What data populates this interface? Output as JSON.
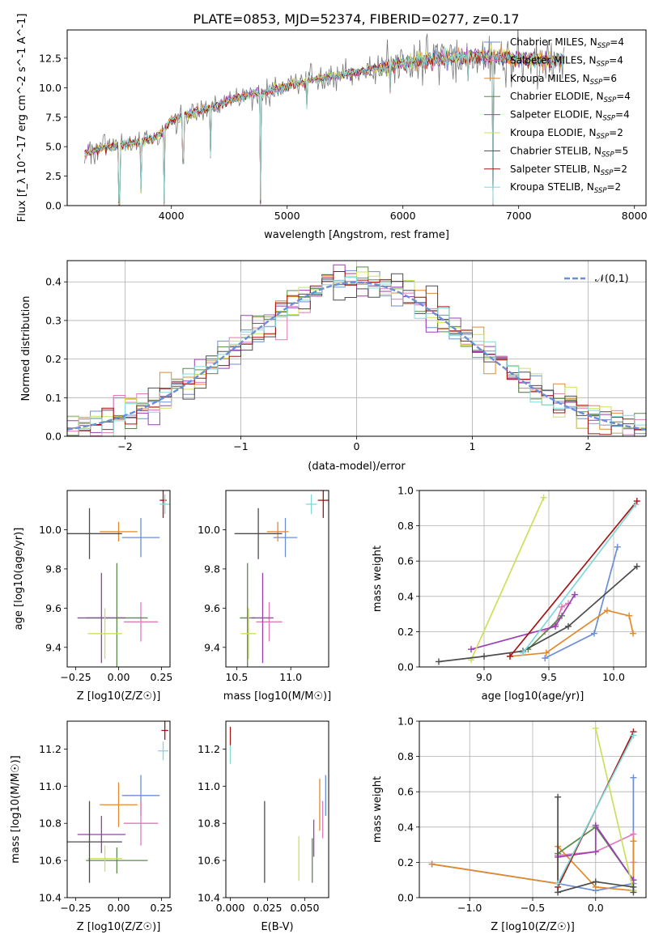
{
  "figure_title": "PLATE=0853, MJD=52374, FIBERID=0277, z=0.17",
  "colors": {
    "Chabrier MILES": "#6a8fd6",
    "Salpeter MILES": "#e07ab8",
    "Kroupa MILES": "#e08a2e",
    "Chabrier ELODIE": "#5a8a4a",
    "Salpeter ELODIE": "#9b3fb5",
    "Kroupa ELODIE": "#cde05a",
    "Chabrier STELIB": "#4d4d4d",
    "Salpeter STELIB": "#a31515",
    "Kroupa STELIB": "#7fd9d9"
  },
  "chart_data": [
    {
      "id": "spectrum",
      "type": "line",
      "title": "PLATE=0853, MJD=52374, FIBERID=0277, z=0.17",
      "xlabel": "wavelength [Angstrom, rest frame]",
      "ylabel": "Flux [f_λ 10^-17 erg cm^-2 s^-1 A^-1]",
      "xlim": [
        3100,
        8100
      ],
      "ylim": [
        0,
        14.9
      ],
      "xticks": [
        "4000",
        "5000",
        "6000",
        "7000",
        "8000"
      ],
      "yticks": [
        "0.0",
        "2.5",
        "5.0",
        "7.5",
        "10.0",
        "12.5"
      ],
      "grid": false,
      "legend_position": "top-right",
      "legend": [
        "Chabrier MILES, N_SSP=4",
        "Salpeter MILES, N_SSP=4",
        "Kroupa MILES, N_SSP=6",
        "Chabrier ELODIE, N_SSP=4",
        "Salpeter ELODIE, N_SSP=4",
        "Kroupa ELODIE, N_SSP=2",
        "Chabrier STELIB, N_SSP=5",
        "Salpeter STELIB, N_SSP=2",
        "Kroupa STELIB, N_SSP=2"
      ],
      "continuum": [
        [
          3250,
          4.4
        ],
        [
          3400,
          4.9
        ],
        [
          3550,
          5.0
        ],
        [
          3700,
          5.4
        ],
        [
          3800,
          5.6
        ],
        [
          3900,
          6.0
        ],
        [
          4000,
          7.2
        ],
        [
          4100,
          7.6
        ],
        [
          4200,
          7.9
        ],
        [
          4300,
          8.2
        ],
        [
          4400,
          8.5
        ],
        [
          4500,
          9.0
        ],
        [
          4600,
          9.2
        ],
        [
          4700,
          9.5
        ],
        [
          4800,
          9.6
        ],
        [
          4900,
          9.9
        ],
        [
          5000,
          10.1
        ],
        [
          5200,
          10.6
        ],
        [
          5400,
          11.0
        ],
        [
          5600,
          11.3
        ],
        [
          5800,
          11.7
        ],
        [
          6000,
          12.1
        ],
        [
          6200,
          12.3
        ],
        [
          6400,
          12.6
        ],
        [
          6600,
          12.7
        ],
        [
          6800,
          12.6
        ],
        [
          7000,
          12.5
        ],
        [
          7200,
          12.3
        ],
        [
          7400,
          12.3
        ]
      ],
      "dips": [
        [
          3550,
          0.0
        ],
        [
          3740,
          1.0
        ],
        [
          3935,
          0.0
        ],
        [
          4102,
          3.5
        ],
        [
          4340,
          4.0
        ],
        [
          4770,
          0.0
        ],
        [
          5170,
          8.0
        ],
        [
          5890,
          9.5
        ],
        [
          6563,
          10.5
        ],
        [
          6780,
          0.0
        ],
        [
          7420,
          0.0
        ]
      ]
    },
    {
      "id": "residuals",
      "type": "histogram",
      "xlabel": "(data-model)/error",
      "ylabel": "Normed distribution",
      "xlim": [
        -2.5,
        2.5
      ],
      "ylim": [
        0,
        0.455
      ],
      "xticks": [
        "−2",
        "−1",
        "0",
        "1",
        "2"
      ],
      "yticks": [
        "0.0",
        "0.1",
        "0.2",
        "0.3",
        "0.4"
      ],
      "grid": true,
      "legend_position": "top-right",
      "legend": [
        "𝒩(0,1)"
      ],
      "bin_width": 0.1
    },
    {
      "id": "age_vs_Z",
      "type": "scatter",
      "xlabel": "Z [log10(Z/Z☉)]",
      "ylabel": "age [log10(age/yr)]",
      "xlim": [
        -0.3,
        0.3
      ],
      "ylim": [
        9.3,
        10.2
      ],
      "xticks": [
        "−0.25",
        "0.00",
        "0.25"
      ],
      "yticks": [
        "9.4",
        "9.6",
        "9.8",
        "10.0"
      ],
      "points": [
        {
          "model": "Chabrier MILES",
          "x": 0.13,
          "y": 9.96,
          "xerr": 0.11,
          "yerr": 0.1
        },
        {
          "model": "Salpeter MILES",
          "x": 0.13,
          "y": 9.53,
          "xerr": 0.1,
          "yerr": 0.1
        },
        {
          "model": "Kroupa MILES",
          "x": 0.0,
          "y": 9.99,
          "xerr": 0.11,
          "yerr": 0.05
        },
        {
          "model": "Chabrier ELODIE",
          "x": -0.01,
          "y": 9.55,
          "xerr": 0.18,
          "yerr": 0.28
        },
        {
          "model": "Salpeter ELODIE",
          "x": -0.1,
          "y": 9.55,
          "xerr": 0.14,
          "yerr": 0.23
        },
        {
          "model": "Kroupa ELODIE",
          "x": -0.08,
          "y": 9.47,
          "xerr": 0.1,
          "yerr": 0.13
        },
        {
          "model": "Chabrier STELIB",
          "x": -0.17,
          "y": 9.98,
          "xerr": 0.19,
          "yerr": 0.13
        },
        {
          "model": "Salpeter STELIB",
          "x": 0.26,
          "y": 10.15,
          "xerr": 0.02,
          "yerr": 0.09
        },
        {
          "model": "Kroupa STELIB",
          "x": 0.27,
          "y": 10.13,
          "xerr": 0.03,
          "yerr": 0.05
        }
      ]
    },
    {
      "id": "age_vs_mass",
      "type": "scatter",
      "xlabel": "mass [log10(M/M☉)]",
      "ylabel": "",
      "xlim": [
        10.4,
        11.35
      ],
      "ylim": [
        9.3,
        10.2
      ],
      "xticks": [
        "10.5",
        "11.0"
      ],
      "yticks": [
        "9.4",
        "9.6",
        "9.8",
        "10.0"
      ],
      "points": [
        {
          "model": "Chabrier MILES",
          "x": 10.95,
          "y": 9.96,
          "xerr": 0.11,
          "yerr": 0.1
        },
        {
          "model": "Salpeter MILES",
          "x": 10.8,
          "y": 9.53,
          "xerr": 0.12,
          "yerr": 0.1
        },
        {
          "model": "Kroupa MILES",
          "x": 10.88,
          "y": 9.99,
          "xerr": 0.1,
          "yerr": 0.05
        },
        {
          "model": "Chabrier ELODIE",
          "x": 10.6,
          "y": 9.55,
          "xerr": 0.07,
          "yerr": 0.28
        },
        {
          "model": "Salpeter ELODIE",
          "x": 10.74,
          "y": 9.55,
          "xerr": 0.1,
          "yerr": 0.23
        },
        {
          "model": "Kroupa ELODIE",
          "x": 10.61,
          "y": 9.47,
          "xerr": 0.07,
          "yerr": 0.13
        },
        {
          "model": "Chabrier STELIB",
          "x": 10.7,
          "y": 9.98,
          "xerr": 0.22,
          "yerr": 0.13
        },
        {
          "model": "Salpeter STELIB",
          "x": 11.3,
          "y": 10.15,
          "xerr": 0.05,
          "yerr": 0.09
        },
        {
          "model": "Kroupa STELIB",
          "x": 11.19,
          "y": 10.13,
          "xerr": 0.05,
          "yerr": 0.05
        }
      ]
    },
    {
      "id": "weight_vs_age",
      "type": "line",
      "xlabel": "age [log10(age/yr)]",
      "ylabel": "mass weight",
      "xlim": [
        8.5,
        10.25
      ],
      "ylim": [
        0,
        1.0
      ],
      "xticks": [
        "9.0",
        "9.5",
        "10.0"
      ],
      "yticks": [
        "0.0",
        "0.2",
        "0.4",
        "0.6",
        "0.8",
        "1.0"
      ],
      "grid": true,
      "series": [
        {
          "model": "Chabrier MILES",
          "x": [
            9.47,
            9.85,
            10.03
          ],
          "y": [
            0.05,
            0.19,
            0.68
          ]
        },
        {
          "model": "Salpeter MILES",
          "x": [
            9.47,
            9.55,
            9.6,
            9.65
          ],
          "y": [
            0.2,
            0.24,
            0.34,
            0.36
          ]
        },
        {
          "model": "Kroupa MILES",
          "x": [
            9.2,
            9.48,
            9.95,
            10.12,
            10.15
          ],
          "y": [
            0.06,
            0.08,
            0.32,
            0.29,
            0.19
          ]
        },
        {
          "model": "Chabrier ELODIE",
          "x": [
            9.34,
            9.6
          ],
          "y": [
            0.1,
            0.29
          ]
        },
        {
          "model": "Salpeter ELODIE",
          "x": [
            8.9,
            9.55,
            9.7
          ],
          "y": [
            0.1,
            0.23,
            0.41
          ]
        },
        {
          "model": "Kroupa ELODIE",
          "x": [
            8.9,
            9.46
          ],
          "y": [
            0.04,
            0.96
          ]
        },
        {
          "model": "Chabrier STELIB",
          "x": [
            8.65,
            9.0,
            9.3,
            9.65,
            10.18
          ],
          "y": [
            0.03,
            0.06,
            0.09,
            0.23,
            0.57
          ]
        },
        {
          "model": "Salpeter STELIB",
          "x": [
            9.2,
            10.18
          ],
          "y": [
            0.06,
            0.94
          ]
        },
        {
          "model": "Kroupa STELIB",
          "x": [
            9.3,
            10.17
          ],
          "y": [
            0.08,
            0.92
          ]
        }
      ]
    },
    {
      "id": "mass_vs_Z",
      "type": "scatter",
      "xlabel": "Z [log10(Z/Z☉)]",
      "ylabel": "mass [log10(M/M☉)]",
      "xlim": [
        -0.3,
        0.3
      ],
      "ylim": [
        10.4,
        11.35
      ],
      "xticks": [
        "−0.25",
        "0.00",
        "0.25"
      ],
      "yticks": [
        "10.4",
        "10.6",
        "10.8",
        "11.0",
        "11.2"
      ],
      "points": [
        {
          "model": "Chabrier MILES",
          "x": 0.13,
          "y": 10.95,
          "xerr": 0.11,
          "yerr": 0.11
        },
        {
          "model": "Salpeter MILES",
          "x": 0.13,
          "y": 10.8,
          "xerr": 0.1,
          "yerr": 0.12
        },
        {
          "model": "Kroupa MILES",
          "x": 0.0,
          "y": 10.9,
          "xerr": 0.11,
          "yerr": 0.12
        },
        {
          "model": "Chabrier ELODIE",
          "x": -0.01,
          "y": 10.6,
          "xerr": 0.18,
          "yerr": 0.07
        },
        {
          "model": "Salpeter ELODIE",
          "x": -0.1,
          "y": 10.74,
          "xerr": 0.14,
          "yerr": 0.1
        },
        {
          "model": "Kroupa ELODIE",
          "x": -0.08,
          "y": 10.61,
          "xerr": 0.1,
          "yerr": 0.07
        },
        {
          "model": "Chabrier STELIB",
          "x": -0.17,
          "y": 10.7,
          "xerr": 0.19,
          "yerr": 0.22
        },
        {
          "model": "Salpeter STELIB",
          "x": 0.27,
          "y": 11.3,
          "xerr": 0.02,
          "yerr": 0.05
        },
        {
          "model": "Kroupa STELIB",
          "x": 0.26,
          "y": 11.19,
          "xerr": 0.03,
          "yerr": 0.05
        }
      ]
    },
    {
      "id": "mass_vs_ebv",
      "type": "scatter",
      "xlabel": "E(B-V)",
      "ylabel": "",
      "xlim": [
        -0.003,
        0.066
      ],
      "ylim": [
        10.4,
        11.35
      ],
      "xticks": [
        "0.000",
        "0.025",
        "0.050"
      ],
      "yticks": [
        "10.4",
        "10.6",
        "10.8",
        "11.0",
        "11.2"
      ],
      "points": [
        {
          "model": "Chabrier MILES",
          "x": 0.064,
          "y": 10.95,
          "xerr": 0,
          "yerr": 0.11
        },
        {
          "model": "Salpeter MILES",
          "x": 0.062,
          "y": 10.82,
          "xerr": 0,
          "yerr": 0.1
        },
        {
          "model": "Kroupa MILES",
          "x": 0.06,
          "y": 10.9,
          "xerr": 0,
          "yerr": 0.14
        },
        {
          "model": "Chabrier ELODIE",
          "x": 0.055,
          "y": 10.6,
          "xerr": 0,
          "yerr": 0.12
        },
        {
          "model": "Salpeter ELODIE",
          "x": 0.056,
          "y": 10.72,
          "xerr": 0,
          "yerr": 0.1
        },
        {
          "model": "Kroupa ELODIE",
          "x": 0.046,
          "y": 10.61,
          "xerr": 0,
          "yerr": 0.12
        },
        {
          "model": "Chabrier STELIB",
          "x": 0.023,
          "y": 10.7,
          "xerr": 0,
          "yerr": 0.22
        },
        {
          "model": "Salpeter STELIB",
          "x": 0.0,
          "y": 11.27,
          "xerr": 0,
          "yerr": 0.05
        },
        {
          "model": "Kroupa STELIB",
          "x": 0.0,
          "y": 11.17,
          "xerr": 0,
          "yerr": 0.05
        }
      ]
    },
    {
      "id": "weight_vs_Z",
      "type": "line",
      "xlabel": "Z [log10(Z/Z☉)]",
      "ylabel": "mass weight",
      "xlim": [
        -1.4,
        0.4
      ],
      "ylim": [
        0,
        1.0
      ],
      "xticks": [
        "−1.0",
        "−0.5",
        "0.0"
      ],
      "yticks": [
        "0.0",
        "0.2",
        "0.4",
        "0.6",
        "0.8",
        "1.0"
      ],
      "grid": true,
      "series": [
        {
          "model": "Chabrier MILES",
          "x": [
            -1.3,
            -0.3,
            0.0,
            0.3,
            0.3
          ],
          "y": [
            0.19,
            0.08,
            0.04,
            0.08,
            0.68
          ]
        },
        {
          "model": "Salpeter MILES",
          "x": [
            -0.3,
            0.0,
            0.3,
            0.3
          ],
          "y": [
            0.24,
            0.26,
            0.36,
            0.2
          ]
        },
        {
          "model": "Kroupa MILES",
          "x": [
            -1.3,
            -0.3,
            -0.3,
            0.0,
            0.3,
            0.3
          ],
          "y": [
            0.19,
            0.08,
            0.29,
            0.06,
            0.04,
            0.32
          ]
        },
        {
          "model": "Chabrier ELODIE",
          "x": [
            -0.3,
            0.0,
            0.3,
            0.3
          ],
          "y": [
            0.25,
            0.4,
            0.1,
            0.04
          ]
        },
        {
          "model": "Salpeter ELODIE",
          "x": [
            -0.3,
            0.0,
            0.0,
            0.3
          ],
          "y": [
            0.23,
            0.26,
            0.41,
            0.1
          ]
        },
        {
          "model": "Kroupa ELODIE",
          "x": [
            0.0,
            0.3
          ],
          "y": [
            0.96,
            0.04
          ]
        },
        {
          "model": "Chabrier STELIB",
          "x": [
            -0.3,
            -0.3,
            0.0,
            0.3,
            0.3
          ],
          "y": [
            0.57,
            0.03,
            0.09,
            0.06,
            0.03
          ]
        },
        {
          "model": "Salpeter STELIB",
          "x": [
            -0.3,
            0.3
          ],
          "y": [
            0.06,
            0.94
          ]
        },
        {
          "model": "Kroupa STELIB",
          "x": [
            -0.3,
            0.3
          ],
          "y": [
            0.08,
            0.92
          ]
        }
      ]
    }
  ]
}
